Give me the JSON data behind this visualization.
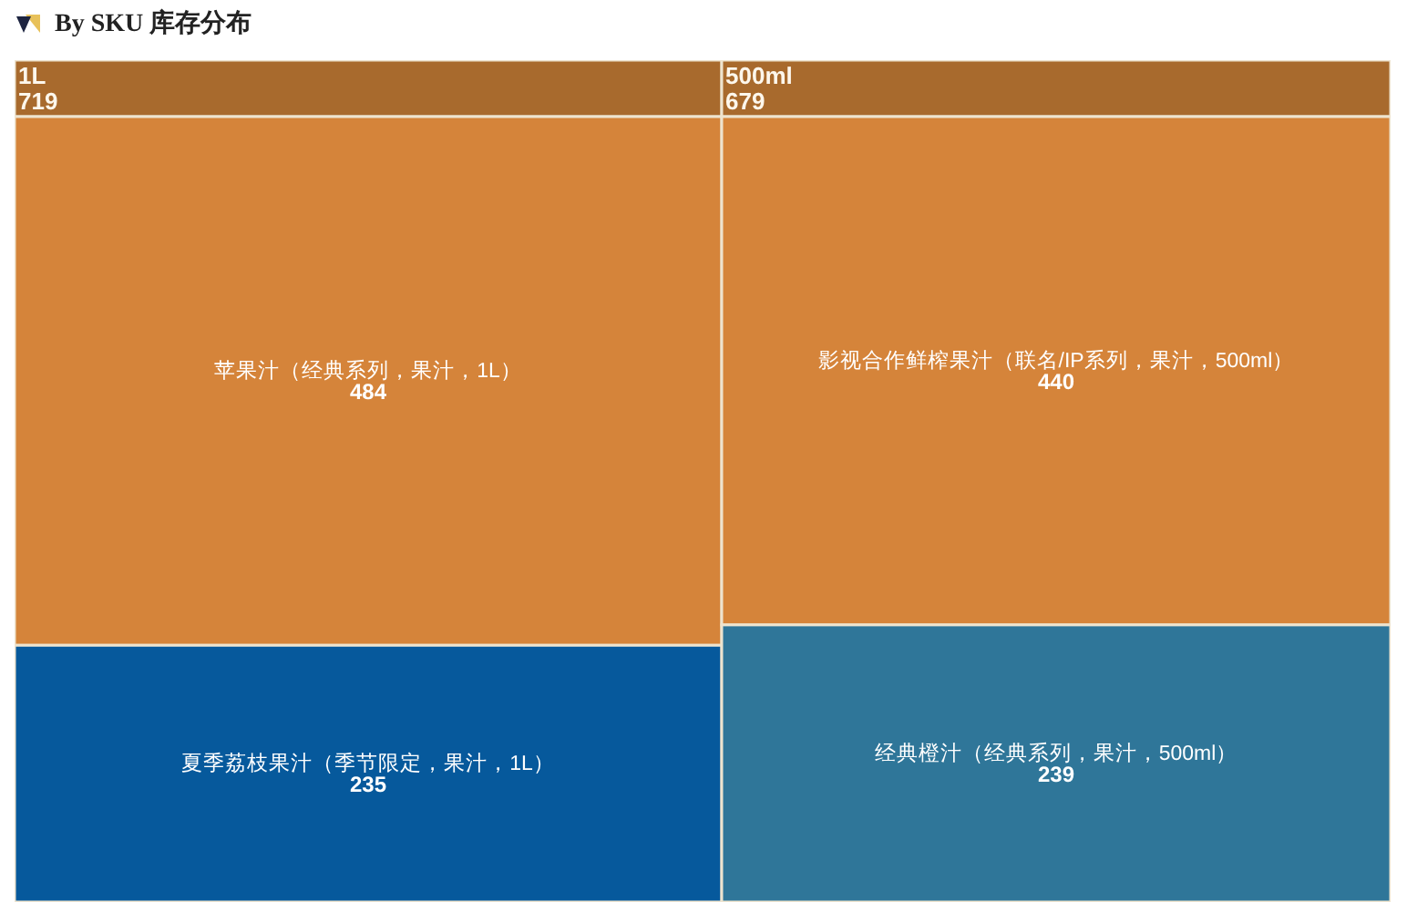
{
  "chart_data": {
    "type": "other",
    "title": "By SKU 库存分布",
    "categories": [
      "苹果汁（经典系列，果汁，1L）",
      "夏季荔枝果汁（季节限定，果汁，1L）",
      "影视合作鲜榨果汁（联名/IP系列，果汁，500ml）",
      "经典橙汁（经典系列，果汁，500ml）"
    ],
    "series": [
      {
        "name": "1L",
        "color": "#a86a2d",
        "colors": [
          "#d5843a",
          "#06599c",
          null,
          null
        ],
        "values": [
          484,
          235,
          null,
          null
        ]
      },
      {
        "name": "500ml",
        "color": "#a86a2d",
        "colors": [
          null,
          null,
          "#d5843a",
          "#2f7699"
        ],
        "values": [
          null,
          null,
          440,
          239
        ]
      }
    ],
    "totals": [
      "719",
      "679"
    ],
    "data_labels": true
  }
}
